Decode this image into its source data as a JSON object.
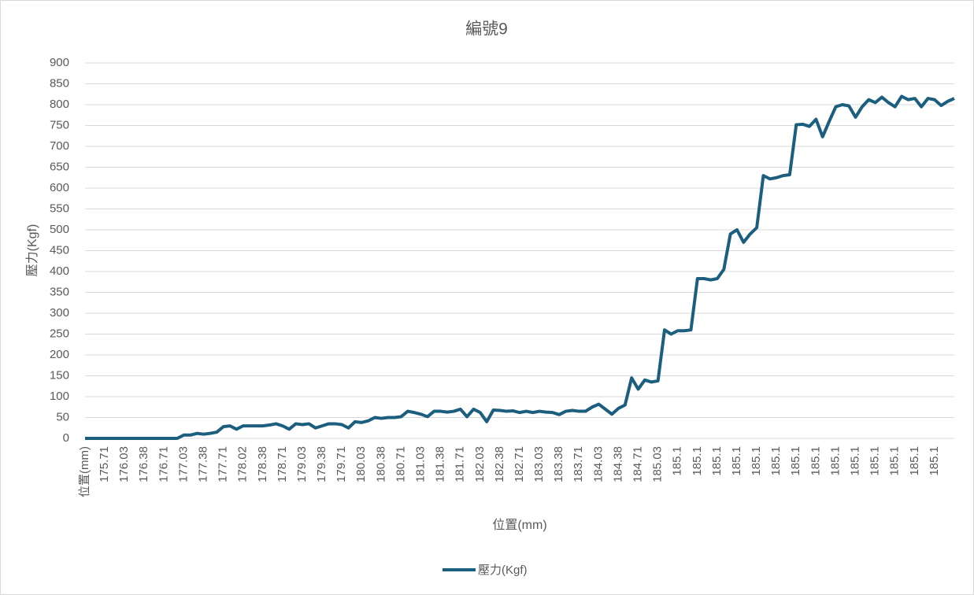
{
  "chart_data": {
    "type": "line",
    "title": "編號9",
    "x_label": "位置(mm)",
    "y_label": "壓力(Kgf)",
    "categories": [
      "位置(mm)",
      null,
      null,
      "175.71",
      null,
      null,
      "176.03",
      null,
      null,
      "176.38",
      null,
      null,
      "176.71",
      null,
      null,
      "177.03",
      null,
      null,
      "177.38",
      null,
      null,
      "177.71",
      null,
      null,
      "178.02",
      null,
      null,
      "178.38",
      null,
      null,
      "178.71",
      null,
      null,
      "179.03",
      null,
      null,
      "179.38",
      null,
      null,
      "179.71",
      null,
      null,
      "180.03",
      null,
      null,
      "180.38",
      null,
      null,
      "180.71",
      null,
      null,
      "181.03",
      null,
      null,
      "181.38",
      null,
      null,
      "181.71",
      null,
      null,
      "182.03",
      null,
      null,
      "182.38",
      null,
      null,
      "182.71",
      null,
      null,
      "183.03",
      null,
      null,
      "183.38",
      null,
      null,
      "183.71",
      null,
      null,
      "184.03",
      null,
      null,
      "184.38",
      null,
      null,
      "184.71",
      null,
      null,
      "185.03",
      null,
      null,
      "185.1",
      null,
      null,
      "185.1",
      null,
      null,
      "185.1",
      null,
      null,
      "185.1",
      null,
      null,
      "185.1",
      null,
      null,
      "185.1",
      null,
      null,
      "185.1",
      null,
      null,
      "185.1",
      null,
      null,
      "185.1",
      null,
      null,
      "185.1",
      null,
      null,
      "185.1",
      null,
      null,
      "185.1",
      null,
      null,
      "185.1",
      null,
      null,
      "185.1",
      null,
      null,
      null
    ],
    "series": [
      {
        "name": "壓力(Kgf)",
        "color": "#1b5e7e",
        "values": [
          0,
          0,
          0,
          0,
          0,
          0,
          0,
          0,
          0,
          0,
          0,
          0,
          0,
          0,
          0,
          8,
          8,
          12,
          10,
          12,
          15,
          28,
          30,
          22,
          30,
          30,
          30,
          30,
          32,
          35,
          30,
          22,
          35,
          33,
          35,
          25,
          30,
          35,
          35,
          33,
          25,
          40,
          38,
          42,
          50,
          48,
          50,
          50,
          52,
          65,
          62,
          58,
          52,
          65,
          65,
          63,
          65,
          70,
          52,
          70,
          62,
          40,
          68,
          67,
          65,
          66,
          62,
          65,
          62,
          65,
          63,
          62,
          57,
          65,
          67,
          65,
          65,
          75,
          82,
          70,
          58,
          72,
          80,
          145,
          118,
          140,
          135,
          138,
          260,
          250,
          258,
          258,
          260,
          383,
          383,
          380,
          383,
          405,
          490,
          500,
          470,
          490,
          505,
          630,
          622,
          625,
          630,
          632,
          752,
          753,
          748,
          765,
          723,
          760,
          795,
          800,
          797,
          770,
          795,
          812,
          805,
          818,
          805,
          795,
          820,
          812,
          815,
          795,
          815,
          812,
          798,
          808,
          815
        ]
      }
    ],
    "ylim": [
      0,
      900
    ],
    "yticks": [
      0,
      50,
      100,
      150,
      200,
      250,
      300,
      350,
      400,
      450,
      500,
      550,
      600,
      650,
      700,
      750,
      800,
      850,
      900
    ],
    "grid": true,
    "legend": "bottom"
  }
}
